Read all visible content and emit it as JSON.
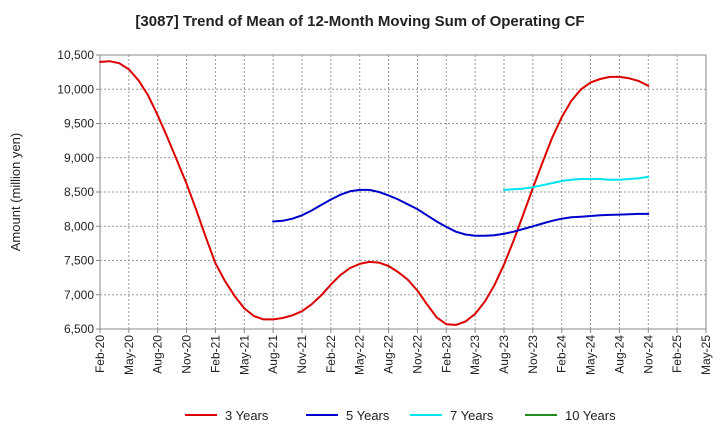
{
  "chart_data": {
    "type": "line",
    "title": "[3087]  Trend of Mean of 12-Month Moving Sum of Operating CF",
    "xlabel": "",
    "ylabel": "Amount (million yen)",
    "ylim": [
      6500,
      10500
    ],
    "yticks": [
      6500,
      7000,
      7500,
      8000,
      8500,
      9000,
      9500,
      10000,
      10500
    ],
    "ytick_labels": [
      "6,500",
      "7,000",
      "7,500",
      "8,000",
      "8,500",
      "9,000",
      "9,500",
      "10,000",
      "10,500"
    ],
    "x_categories": [
      "Feb-20",
      "May-20",
      "Aug-20",
      "Nov-20",
      "Feb-21",
      "May-21",
      "Aug-21",
      "Nov-21",
      "Feb-22",
      "May-22",
      "Aug-22",
      "Nov-22",
      "Feb-23",
      "May-23",
      "Aug-23",
      "Nov-23",
      "Feb-24",
      "May-24",
      "Aug-24",
      "Nov-24",
      "Feb-25",
      "May-25"
    ],
    "grid": true,
    "legend_position": "bottom",
    "series": [
      {
        "name": "3 Years",
        "color": "#dd0000",
        "start_index": 0,
        "values": [
          10400,
          10410,
          10380,
          10290,
          10130,
          9910,
          9620,
          9300,
          8960,
          8620,
          8240,
          7840,
          7460,
          7200,
          6980,
          6800,
          6690,
          6640,
          6640,
          6660,
          6700,
          6760,
          6860,
          6990,
          7150,
          7290,
          7390,
          7450,
          7480,
          7470,
          7420,
          7330,
          7220,
          7060,
          6860,
          6670,
          6570,
          6560,
          6610,
          6720,
          6900,
          7140,
          7440,
          7790,
          8170,
          8560,
          8930,
          9290,
          9590,
          9830,
          10000,
          10100,
          10150,
          10180,
          10180,
          10160,
          10120,
          10050
        ]
      },
      {
        "name": "5 Years",
        "color": "#0000cc",
        "start_index": 18,
        "values": [
          8070,
          8080,
          8110,
          8160,
          8230,
          8310,
          8390,
          8460,
          8510,
          8530,
          8530,
          8500,
          8450,
          8390,
          8320,
          8250,
          8160,
          8070,
          7990,
          7920,
          7880,
          7860,
          7860,
          7870,
          7890,
          7920,
          7960,
          8000,
          8040,
          8080,
          8110,
          8130,
          8140,
          8150,
          8160,
          8165,
          8170,
          8175,
          8180,
          8180
        ]
      },
      {
        "name": "7 Years",
        "color": "#00e5ee",
        "start_index": 42,
        "values": [
          8530,
          8540,
          8550,
          8570,
          8600,
          8630,
          8660,
          8680,
          8690,
          8690,
          8690,
          8680,
          8680,
          8690,
          8700,
          8720
        ]
      },
      {
        "name": "10 Years",
        "color": "#228b22",
        "start_index": 0,
        "values": []
      }
    ]
  }
}
